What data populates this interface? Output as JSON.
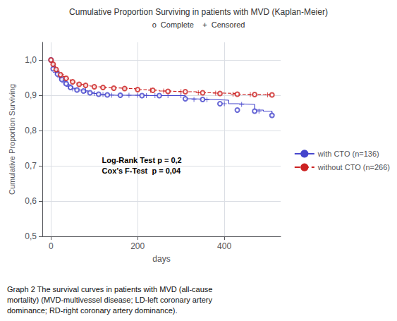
{
  "chart_data": {
    "type": "line",
    "title": "Cumulative Proportion Surviving in patients with MVD (Kaplan-Meier)",
    "subtitle": "o  Complete    +  Censored",
    "x_label": "days",
    "y_label": "Cumulative Proportion Surviving",
    "annotation": "Log-Rank Test p = 0,2\nCox’s F-Test  p = 0,04",
    "caption": "Graph 2 The survival curves in patients with MVD (all-cause\nmortality) (MVD-multivessel disease; LD-left coronary artery\ndominance; RD-right coronary artery dominance).",
    "xlim": [
      -20,
      530
    ],
    "ylim": [
      0.5,
      1.05
    ],
    "xticks": [
      0,
      200,
      400
    ],
    "yticks": [
      {
        "value": 0.5,
        "label": "0,5"
      },
      {
        "value": 0.6,
        "label": "0,6"
      },
      {
        "value": 0.7,
        "label": "0,7"
      },
      {
        "value": 0.8,
        "label": "0,8"
      },
      {
        "value": 0.9,
        "label": "0,9"
      },
      {
        "value": 1.0,
        "label": "1,0"
      }
    ],
    "grid": true,
    "legend": "right",
    "series": [
      {
        "name": "with CTO (n=136)",
        "type": "step",
        "color": "#4444cc",
        "line_style": "solid",
        "x": [
          -5,
          0,
          2,
          5,
          8,
          10,
          12,
          15,
          18,
          20,
          25,
          30,
          35,
          40,
          45,
          50,
          55,
          60,
          70,
          80,
          90,
          100,
          110,
          120,
          130,
          140,
          150,
          160,
          170,
          180,
          190,
          200,
          210,
          220,
          230,
          250,
          270,
          290,
          310,
          330,
          350,
          370,
          390,
          410,
          430,
          450,
          470,
          490,
          510
        ],
        "values": [
          1.0,
          1.0,
          0.99,
          0.98,
          0.975,
          0.97,
          0.965,
          0.96,
          0.955,
          0.95,
          0.945,
          0.94,
          0.935,
          0.93,
          0.925,
          0.92,
          0.918,
          0.915,
          0.913,
          0.91,
          0.907,
          0.905,
          0.903,
          0.902,
          0.901,
          0.9,
          0.9,
          0.9,
          0.9,
          0.9,
          0.9,
          0.9,
          0.9,
          0.899,
          0.899,
          0.899,
          0.899,
          0.899,
          0.89,
          0.889,
          0.888,
          0.887,
          0.886,
          0.876,
          0.875,
          0.874,
          0.858,
          0.855,
          0.843
        ]
      },
      {
        "name": "without CTO (n=266)",
        "type": "step",
        "color": "#cc2222",
        "line_style": "dashed",
        "x": [
          -5,
          0,
          2,
          5,
          8,
          10,
          12,
          15,
          18,
          22,
          28,
          35,
          40,
          45,
          50,
          55,
          60,
          65,
          70,
          80,
          90,
          100,
          110,
          120,
          130,
          140,
          155,
          170,
          185,
          200,
          215,
          230,
          250,
          270,
          290,
          310,
          340,
          370,
          400,
          430,
          460,
          490,
          510
        ],
        "values": [
          1.0,
          1.0,
          0.995,
          0.988,
          0.983,
          0.978,
          0.973,
          0.968,
          0.963,
          0.958,
          0.953,
          0.948,
          0.944,
          0.941,
          0.938,
          0.935,
          0.933,
          0.931,
          0.93,
          0.928,
          0.926,
          0.924,
          0.923,
          0.922,
          0.921,
          0.921,
          0.92,
          0.919,
          0.918,
          0.916,
          0.915,
          0.914,
          0.912,
          0.911,
          0.91,
          0.91,
          0.907,
          0.906,
          0.905,
          0.903,
          0.902,
          0.902,
          0.901
        ]
      },
      {
        "type": "scatter",
        "color": "#4444cc",
        "marker": "plus",
        "x": [
          10,
          20,
          30,
          40,
          50,
          60,
          80,
          100,
          120,
          140,
          160,
          180,
          200,
          220,
          240,
          270,
          300,
          330,
          360,
          400,
          440,
          480,
          510
        ],
        "values": [
          0.965,
          0.95,
          0.935,
          0.925,
          0.918,
          0.915,
          0.913,
          0.905,
          0.902,
          0.9,
          0.9,
          0.9,
          0.9,
          0.899,
          0.899,
          0.899,
          0.899,
          0.888,
          0.887,
          0.876,
          0.874,
          0.855,
          0.845
        ]
      },
      {
        "type": "scatter",
        "color": "#cc2222",
        "marker": "plus",
        "x": [
          5,
          15,
          25,
          35,
          50,
          65,
          80,
          100,
          120,
          145,
          170,
          200,
          230,
          260,
          300,
          340,
          380,
          420,
          460,
          500
        ],
        "values": [
          0.988,
          0.968,
          0.958,
          0.948,
          0.938,
          0.931,
          0.928,
          0.924,
          0.922,
          0.92,
          0.919,
          0.916,
          0.914,
          0.912,
          0.91,
          0.907,
          0.906,
          0.903,
          0.902,
          0.901
        ]
      },
      {
        "type": "scatter",
        "color": "#4444cc",
        "marker": "circle",
        "x": [
          0,
          5,
          15,
          25,
          35,
          45,
          60,
          75,
          90,
          110,
          130,
          160,
          210,
          250,
          310,
          350,
          390,
          430,
          470,
          510
        ],
        "values": [
          1.0,
          0.975,
          0.96,
          0.945,
          0.933,
          0.922,
          0.915,
          0.912,
          0.907,
          0.903,
          0.901,
          0.9,
          0.899,
          0.899,
          0.89,
          0.888,
          0.876,
          0.858,
          0.855,
          0.843
        ]
      },
      {
        "type": "scatter",
        "color": "#cc2222",
        "marker": "circle",
        "x": [
          0,
          5,
          12,
          22,
          35,
          50,
          65,
          80,
          100,
          120,
          145,
          170,
          200,
          235,
          270,
          310,
          350,
          390,
          430,
          470,
          510
        ],
        "values": [
          1.0,
          0.988,
          0.973,
          0.958,
          0.948,
          0.938,
          0.931,
          0.928,
          0.924,
          0.922,
          0.92,
          0.919,
          0.916,
          0.914,
          0.911,
          0.91,
          0.907,
          0.905,
          0.903,
          0.902,
          0.901
        ]
      }
    ]
  }
}
